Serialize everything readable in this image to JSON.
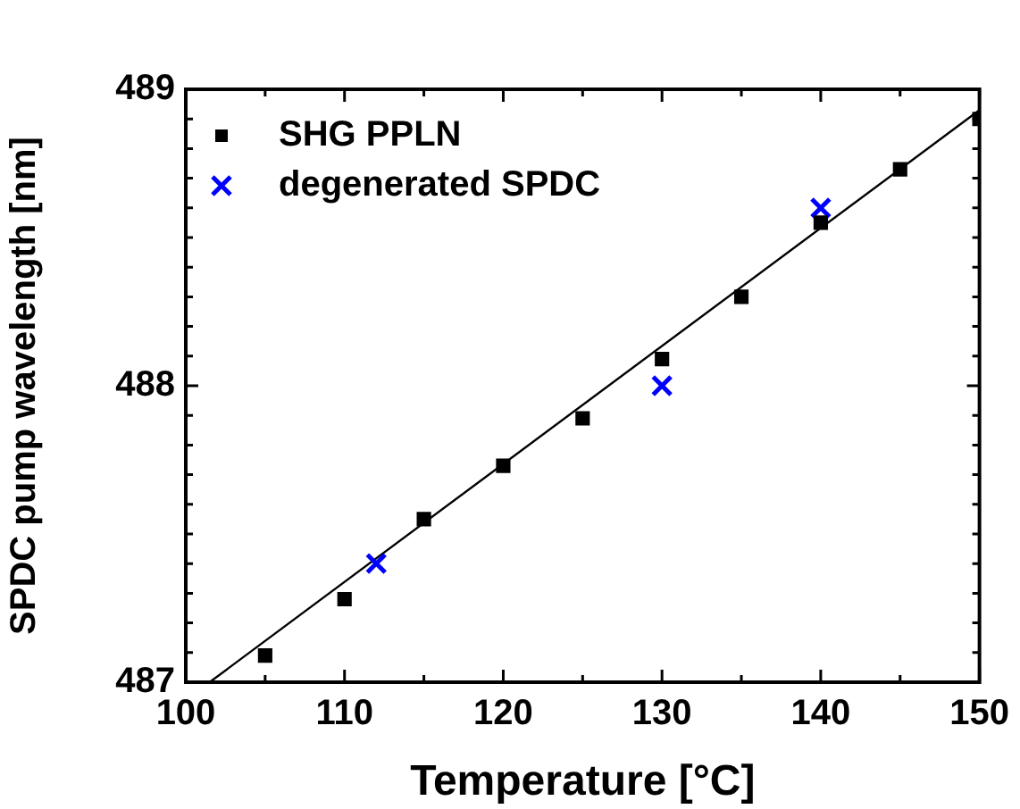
{
  "chart_data": {
    "type": "scatter",
    "xlabel": "Temperature [°C]",
    "ylabel": "SPDC pump wavelength [nm]",
    "xlim": [
      100,
      150
    ],
    "xticks": [
      100,
      {
        "value": 105,
        "label": null
      },
      110,
      {
        "value": 115,
        "label": null
      },
      120,
      {
        "value": 125,
        "label": null
      },
      130,
      {
        "value": 135,
        "label": null
      },
      140,
      {
        "value": 145,
        "label": null
      },
      150
    ],
    "ylim": [
      487,
      489
    ],
    "yticks": [
      487,
      {
        "value": 487.1,
        "label": null
      },
      {
        "value": 487.2,
        "label": null
      },
      {
        "value": 487.3,
        "label": null
      },
      {
        "value": 487.4,
        "label": null
      },
      {
        "value": 487.5,
        "label": null
      },
      {
        "value": 487.6,
        "label": null
      },
      {
        "value": 487.7,
        "label": null
      },
      {
        "value": 487.8,
        "label": null
      },
      {
        "value": 487.9,
        "label": null
      },
      488,
      {
        "value": 488.1,
        "label": null
      },
      {
        "value": 488.2,
        "label": null
      },
      {
        "value": 488.3,
        "label": null
      },
      {
        "value": 488.4,
        "label": null
      },
      {
        "value": 488.5,
        "label": null
      },
      {
        "value": 488.6,
        "label": null
      },
      {
        "value": 488.7,
        "label": null
      },
      {
        "value": 488.8,
        "label": null
      },
      {
        "value": 488.9,
        "label": null
      },
      489
    ],
    "grid": false,
    "legend": "top left",
    "series": [
      {
        "name": "SHG PPLN",
        "type": "scatter",
        "marker": "square",
        "color": "#000000",
        "x": [
          105,
          110,
          115,
          120,
          125,
          130,
          135,
          140,
          145,
          150
        ],
        "values": [
          487.09,
          487.28,
          487.55,
          487.73,
          487.89,
          488.09,
          488.3,
          488.55,
          488.73,
          488.9
        ]
      },
      {
        "name": "degenerated SPDC",
        "type": "scatter",
        "marker": "cross",
        "color": "#0000ff",
        "x": [
          112,
          130,
          140
        ],
        "values": [
          487.4,
          488.0,
          488.6
        ]
      },
      {
        "type": "line",
        "color": "#000000",
        "x": [
          101.5,
          150
        ],
        "values": [
          487.0,
          488.93
        ]
      }
    ]
  }
}
